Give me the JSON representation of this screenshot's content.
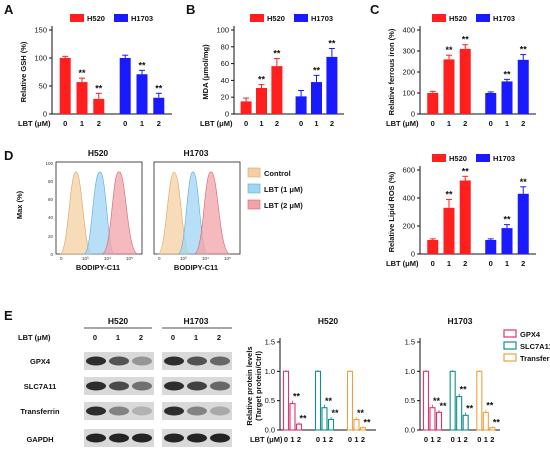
{
  "colors": {
    "h520": "#ff1f1f",
    "h1703": "#1a1aff",
    "gpx4": "#e0336f",
    "slc7a11": "#0f8f8f",
    "transferrin": "#f0a040",
    "ctrl_hist": "#f5cfa0",
    "lbt1_hist": "#9fd6f5",
    "lbt2_hist": "#f2a3a8"
  },
  "panels": {
    "A": {
      "letter": "A",
      "ylabel": "Relative GSH (%)"
    },
    "B": {
      "letter": "B",
      "ylabel": "MDA (μmol/mg)"
    },
    "C": {
      "letter": "C",
      "ylabel": "Relative ferrous iron (%)"
    },
    "D": {
      "letter": "D",
      "hist_titles": [
        "H520",
        "H1703"
      ],
      "ylabel": "Max (%)",
      "xlabel": "BODIPY-C11",
      "legend": [
        "Control",
        "LBT  (1 μM)",
        "LBT  (2 μM)"
      ],
      "yticks": [
        "0",
        "20",
        "40",
        "60",
        "80",
        "100"
      ],
      "xticks": [
        "0",
        "10³",
        "10⁴",
        "10⁵"
      ]
    },
    "lipid": {
      "ylabel": "Relative Lipid ROS (%)"
    },
    "E": {
      "letter": "E",
      "lbt_label": "LBT (μM)",
      "cell_lines": [
        "H520",
        "H1703"
      ],
      "doses": [
        "0",
        "1",
        "2"
      ],
      "proteins": [
        "GPX4",
        "SLC7A11",
        "Transferrin",
        "GAPDH"
      ],
      "ylabel1": "Relative protein levels",
      "ylabel2": "(Target protein/Ctrl)",
      "legend": [
        "GPX4",
        "SLC7A11",
        "Transferrin"
      ]
    }
  },
  "common": {
    "lbt_label": "LBT (μM)",
    "dose_labels": [
      "0",
      "1",
      "2",
      "0",
      "1",
      "2"
    ],
    "legend": [
      "H520",
      "H1703"
    ],
    "sig": "**"
  },
  "chart_data": [
    {
      "panel": "A",
      "type": "bar",
      "categories": [
        "0",
        "1",
        "2"
      ],
      "ylabel": "Relative GSH (%)",
      "ylim": [
        0,
        150
      ],
      "yticks": [
        0,
        50,
        100,
        150
      ],
      "series": [
        {
          "name": "H520",
          "values": [
            100,
            57,
            27
          ],
          "errors": [
            3,
            7,
            10
          ]
        },
        {
          "name": "H1703",
          "values": [
            100,
            71,
            29
          ],
          "errors": [
            5,
            7,
            8
          ]
        }
      ],
      "significance": [
        [
          false,
          true,
          true
        ],
        [
          false,
          true,
          true
        ]
      ]
    },
    {
      "panel": "B",
      "type": "bar",
      "categories": [
        "0",
        "1",
        "2"
      ],
      "ylabel": "MDA (μmol/mg)",
      "ylim": [
        0,
        100
      ],
      "yticks": [
        0,
        20,
        40,
        60,
        80,
        100
      ],
      "series": [
        {
          "name": "H520",
          "values": [
            15,
            31,
            57
          ],
          "errors": [
            4,
            4,
            9
          ]
        },
        {
          "name": "H1703",
          "values": [
            21,
            38,
            68
          ],
          "errors": [
            7,
            8,
            10
          ]
        }
      ],
      "significance": [
        [
          false,
          true,
          true
        ],
        [
          false,
          true,
          true
        ]
      ]
    },
    {
      "panel": "C",
      "type": "bar",
      "categories": [
        "0",
        "1",
        "2"
      ],
      "ylabel": "Relative ferrous iron (%)",
      "ylim": [
        0,
        400
      ],
      "yticks": [
        0,
        100,
        200,
        300,
        400
      ],
      "series": [
        {
          "name": "H520",
          "values": [
            100,
            260,
            310
          ],
          "errors": [
            8,
            20,
            20
          ]
        },
        {
          "name": "H1703",
          "values": [
            100,
            155,
            258
          ],
          "errors": [
            5,
            10,
            25
          ]
        }
      ],
      "significance": [
        [
          false,
          true,
          true
        ],
        [
          false,
          true,
          true
        ]
      ]
    },
    {
      "panel": "lipid",
      "type": "bar",
      "categories": [
        "0",
        "1",
        "2"
      ],
      "ylabel": "Relative Lipid ROS (%)",
      "ylim": [
        0,
        600
      ],
      "yticks": [
        0,
        200,
        400,
        600
      ],
      "series": [
        {
          "name": "H520",
          "values": [
            100,
            330,
            525
          ],
          "errors": [
            8,
            60,
            30
          ]
        },
        {
          "name": "H1703",
          "values": [
            100,
            185,
            430
          ],
          "errors": [
            8,
            25,
            50
          ]
        }
      ],
      "significance": [
        [
          false,
          true,
          true
        ],
        [
          false,
          true,
          true
        ]
      ]
    },
    {
      "panel": "E-H520",
      "type": "bar",
      "title": "H520",
      "categories": [
        "0",
        "1",
        "2"
      ],
      "ylim": [
        0,
        1.5
      ],
      "yticks": [
        0.0,
        0.5,
        1.0,
        1.5
      ],
      "series": [
        {
          "name": "GPX4",
          "values": [
            1.0,
            0.45,
            0.1
          ],
          "errors": [
            0.02,
            0.05,
            0.03
          ]
        },
        {
          "name": "SLC7A11",
          "values": [
            1.0,
            0.38,
            0.18
          ],
          "errors": [
            0.02,
            0.05,
            0.04
          ]
        },
        {
          "name": "Transferrin",
          "values": [
            1.0,
            0.18,
            0.04
          ],
          "errors": [
            0.02,
            0.04,
            0.02
          ]
        }
      ],
      "significance": [
        [
          false,
          true,
          true
        ],
        [
          false,
          true,
          true
        ],
        [
          false,
          true,
          true
        ]
      ]
    },
    {
      "panel": "E-H1703",
      "type": "bar",
      "title": "H1703",
      "categories": [
        "0",
        "1",
        "2"
      ],
      "ylim": [
        0,
        1.5
      ],
      "yticks": [
        0.0,
        0.5,
        1.0,
        1.5
      ],
      "series": [
        {
          "name": "GPX4",
          "values": [
            1.0,
            0.38,
            0.3
          ],
          "errors": [
            0.02,
            0.05,
            0.04
          ]
        },
        {
          "name": "SLC7A11",
          "values": [
            1.0,
            0.57,
            0.25
          ],
          "errors": [
            0.02,
            0.05,
            0.05
          ]
        },
        {
          "name": "Transferrin",
          "values": [
            1.0,
            0.3,
            0.04
          ],
          "errors": [
            0.02,
            0.05,
            0.02
          ]
        }
      ],
      "significance": [
        [
          false,
          true,
          true
        ],
        [
          false,
          true,
          true
        ],
        [
          false,
          true,
          true
        ]
      ]
    }
  ]
}
